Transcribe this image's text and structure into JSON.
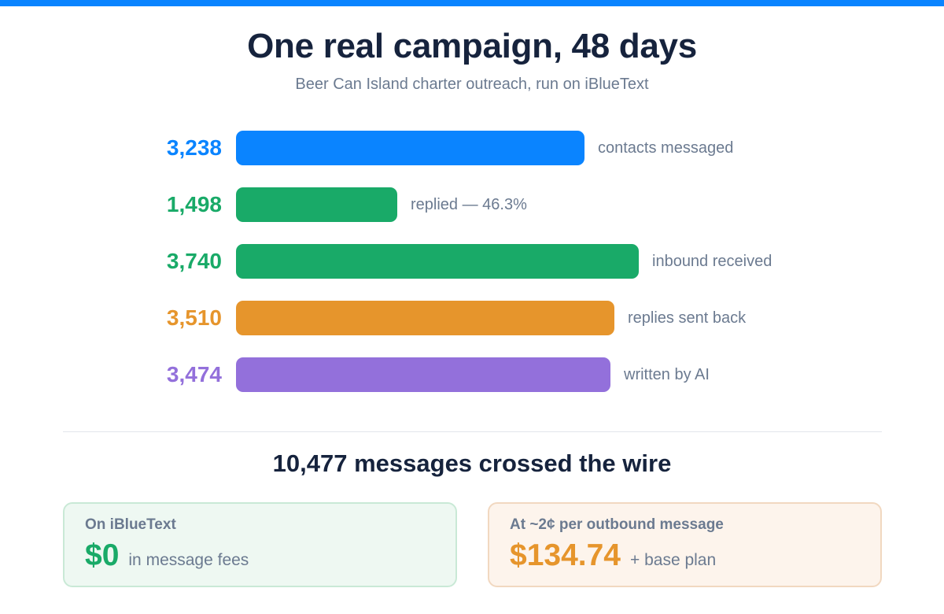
{
  "title": "One real campaign, 48 days",
  "subtitle": "Beer Can Island charter outreach, run on iBlueText",
  "colors": {
    "top_bar": "#0a84ff",
    "blue": "#0a84ff",
    "green": "#19aa68",
    "orange": "#e6952c",
    "purple": "#9370db"
  },
  "chart_data": {
    "type": "bar",
    "orientation": "horizontal",
    "categories": [
      "contacts messaged",
      "replied — 46.3%",
      "inbound received",
      "replies sent back",
      "written by AI"
    ],
    "values": [
      3238,
      1498,
      3740,
      3510,
      3474
    ],
    "value_labels": [
      "3,238",
      "1,498",
      "3,740",
      "3,510",
      "3,474"
    ],
    "bar_colors": [
      "#0a84ff",
      "#19aa68",
      "#19aa68",
      "#e6952c",
      "#9370db"
    ],
    "xlim": [
      0,
      3740
    ],
    "grid": false
  },
  "summary": "10,477 messages crossed the wire",
  "cards": [
    {
      "heading": "On iBlueText",
      "amount": "$0",
      "note": "in message fees",
      "color": "#19aa68"
    },
    {
      "heading": "At ~2¢ per outbound message",
      "amount": "$134.74",
      "note": "+ base plan",
      "color": "#e6952c"
    }
  ]
}
